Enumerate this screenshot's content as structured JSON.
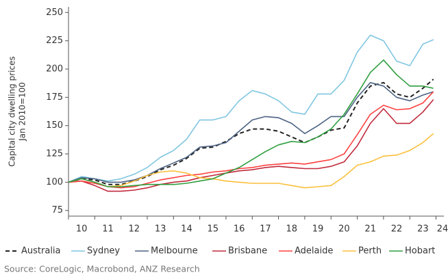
{
  "chart_data": {
    "type": "line",
    "ylabel": [
      "Capital city dwelling prices",
      "Jan 2010=100"
    ],
    "source": "Source: CoreLogic, Macrobond, ANZ Research",
    "x": [
      10,
      10.5,
      11,
      11.5,
      12,
      12.5,
      13,
      13.5,
      14,
      14.5,
      15,
      15.5,
      16,
      16.5,
      17,
      17.5,
      18,
      18.5,
      19,
      19.5,
      20,
      20.5,
      21,
      21.5,
      22,
      22.5,
      23,
      23.5,
      23.9
    ],
    "xlim": [
      10,
      24.3
    ],
    "xticks": [
      10,
      11,
      12,
      13,
      14,
      15,
      16,
      17,
      18,
      19,
      20,
      21,
      22,
      23,
      24
    ],
    "ylim": [
      70,
      255
    ],
    "yticks": [
      75,
      100,
      125,
      150,
      175,
      200,
      225,
      250
    ],
    "grid": false,
    "legend": "bottom",
    "series": [
      {
        "name": "Australia",
        "color": "#222222",
        "line_style": "dashed",
        "values": [
          100,
          103,
          102,
          98,
          98,
          101,
          105,
          111,
          115,
          121,
          130,
          131,
          136,
          143,
          147,
          147,
          145,
          140,
          135,
          140,
          146,
          148,
          170,
          185,
          188,
          178,
          175,
          183,
          191
        ]
      },
      {
        "name": "Sydney",
        "color": "#7fc6e0",
        "values": [
          100,
          105,
          103,
          101,
          103,
          107,
          113,
          122,
          128,
          138,
          155,
          155,
          158,
          172,
          181,
          178,
          172,
          162,
          160,
          178,
          178,
          190,
          215,
          230,
          225,
          207,
          203,
          222,
          226
        ]
      },
      {
        "name": "Melbourne",
        "color": "#4b6282",
        "values": [
          100,
          104,
          103,
          100,
          100,
          102,
          106,
          112,
          117,
          122,
          131,
          132,
          135,
          145,
          155,
          158,
          157,
          152,
          143,
          150,
          158,
          158,
          175,
          188,
          185,
          175,
          172,
          177,
          180
        ]
      },
      {
        "name": "Brisbane",
        "color": "#c0283a",
        "values": [
          100,
          101,
          97,
          92,
          92,
          93,
          95,
          98,
          100,
          101,
          104,
          106,
          108,
          110,
          111,
          113,
          114,
          113,
          112,
          112,
          114,
          118,
          132,
          152,
          165,
          152,
          152,
          162,
          173
        ]
      },
      {
        "name": "Adelaide",
        "color": "#ff4040",
        "values": [
          100,
          101,
          99,
          96,
          95,
          96,
          99,
          102,
          104,
          106,
          107,
          109,
          110,
          112,
          113,
          115,
          116,
          117,
          116,
          118,
          120,
          125,
          142,
          160,
          168,
          164,
          165,
          170,
          180
        ]
      },
      {
        "name": "Perth",
        "color": "#fbbf3a",
        "values": [
          100,
          103,
          100,
          96,
          97,
          101,
          106,
          109,
          110,
          108,
          104,
          103,
          101,
          100,
          99,
          99,
          99,
          97,
          95,
          96,
          97,
          105,
          115,
          118,
          123,
          124,
          128,
          135,
          143
        ]
      },
      {
        "name": "Hobart",
        "color": "#2e9e3e",
        "values": [
          100,
          103,
          100,
          96,
          96,
          97,
          98,
          98,
          98,
          99,
          101,
          103,
          108,
          113,
          120,
          127,
          133,
          136,
          135,
          140,
          147,
          160,
          178,
          197,
          208,
          195,
          185,
          185,
          183
        ]
      }
    ]
  }
}
